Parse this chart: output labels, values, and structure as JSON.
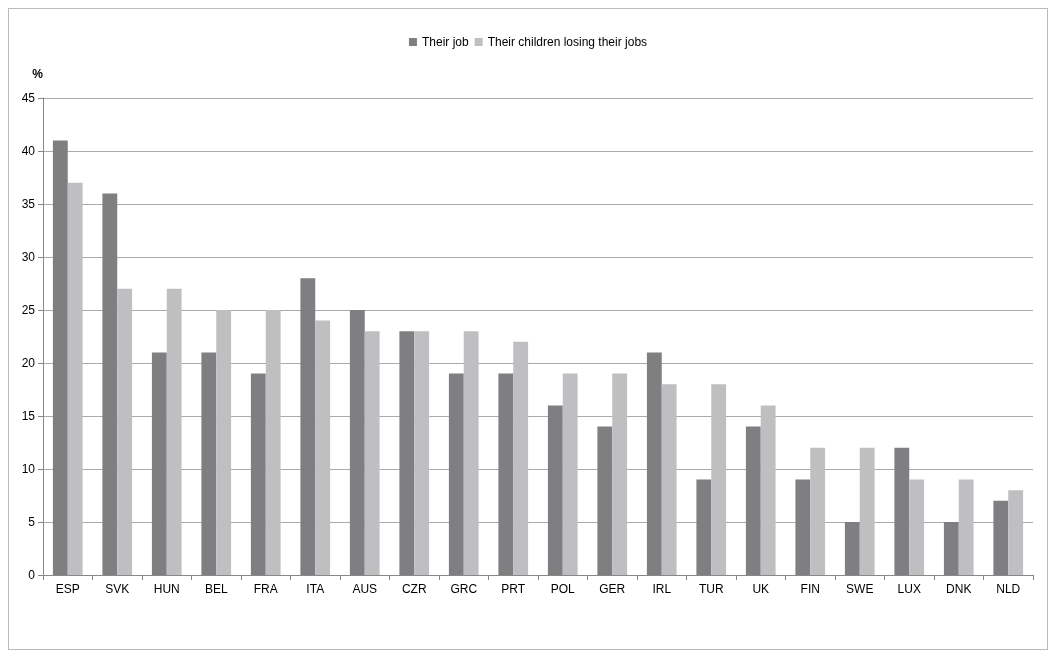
{
  "chart_data": {
    "type": "bar",
    "ylabel": "%",
    "categories": [
      "ESP",
      "SVK",
      "HUN",
      "BEL",
      "FRA",
      "ITA",
      "AUS",
      "CZR",
      "GRC",
      "PRT",
      "POL",
      "GER",
      "IRL",
      "TUR",
      "UK",
      "FIN",
      "SWE",
      "LUX",
      "DNK",
      "NLD"
    ],
    "series": [
      {
        "name": "Their job",
        "color": "#7f7f81",
        "values": [
          41,
          36,
          21,
          21,
          19,
          28,
          25,
          23,
          19,
          19,
          16,
          14,
          21,
          9,
          14,
          9,
          5,
          12,
          5,
          7
        ]
      },
      {
        "name": "Their children losing their jobs",
        "color": "#bfbfc1",
        "values": [
          37,
          27,
          27,
          25,
          25,
          24,
          23,
          23,
          23,
          22,
          19,
          19,
          18,
          18,
          16,
          12,
          12,
          9,
          9,
          8
        ]
      }
    ],
    "ylim": [
      0,
      45
    ],
    "yticks": [
      0,
      5,
      10,
      15,
      20,
      25,
      30,
      35,
      40,
      45
    ],
    "grid": "y",
    "legend": "top"
  }
}
